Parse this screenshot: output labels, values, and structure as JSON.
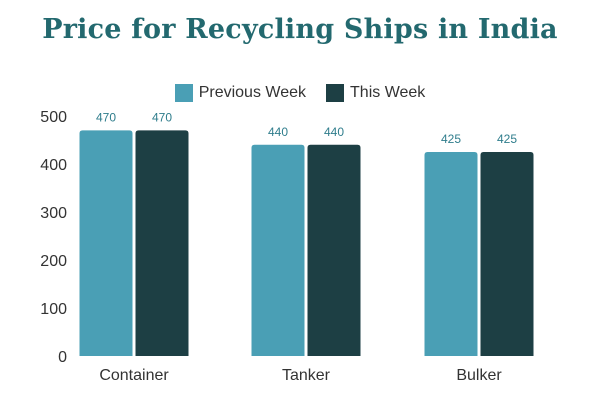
{
  "chart_data": {
    "type": "bar",
    "title": "Price for Recycling Ships in India",
    "categories": [
      "Container",
      "Tanker",
      "Bulker"
    ],
    "series": [
      {
        "name": "Previous Week",
        "values": [
          470,
          440,
          425
        ],
        "color": "#4a9fb5",
        "labels": [
          "470",
          "440",
          "425"
        ]
      },
      {
        "name": "This Week",
        "values": [
          470,
          440,
          425
        ],
        "color": "#1d3f44",
        "labels": [
          "470",
          "440",
          "425"
        ]
      }
    ],
    "ylim": [
      0,
      500
    ],
    "yticks": [
      "0",
      "100",
      "200",
      "300",
      "400",
      "500"
    ],
    "xlabel": "",
    "ylabel": "",
    "grid": false,
    "legend_position": "top-center",
    "label_color": "#2f7d8c"
  }
}
